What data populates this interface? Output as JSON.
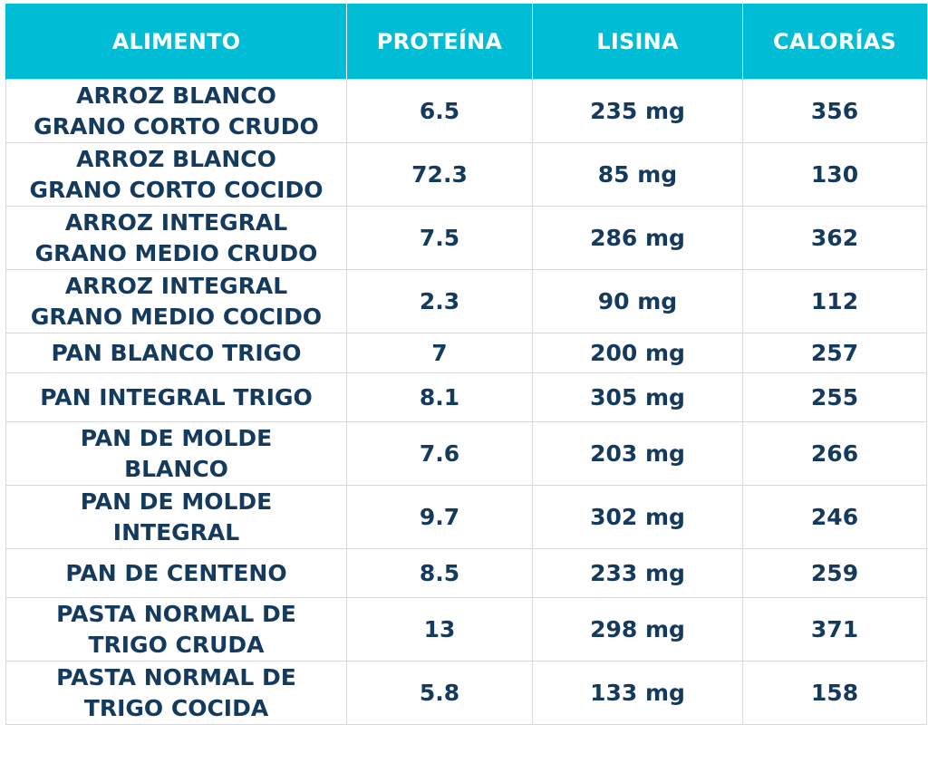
{
  "table": {
    "headers": [
      "ALIMENTO",
      "PROTEÍNA",
      "LISINA",
      "CALORÍAS"
    ],
    "rows": [
      {
        "alimento": "ARROZ BLANCO\nGRANO CORTO CRUDO",
        "proteina": "6.5",
        "lisina": "235 mg",
        "calorias": "356"
      },
      {
        "alimento": "ARROZ BLANCO\nGRANO CORTO COCIDO",
        "proteina": "72.3",
        "lisina": "85 mg",
        "calorias": "130"
      },
      {
        "alimento": "ARROZ INTEGRAL\nGRANO MEDIO CRUDO",
        "proteina": "7.5",
        "lisina": "286 mg",
        "calorias": "362"
      },
      {
        "alimento": "ARROZ INTEGRAL\nGRANO MEDIO COCIDO",
        "proteina": "2.3",
        "lisina": "90 mg",
        "calorias": "112"
      },
      {
        "alimento": "PAN BLANCO TRIGO",
        "proteina": "7",
        "lisina": "200 mg",
        "calorias": "257"
      },
      {
        "alimento": "PAN INTEGRAL TRIGO",
        "proteina": "8.1",
        "lisina": "305 mg",
        "calorias": "255"
      },
      {
        "alimento": "PAN DE  MOLDE\nBLANCO",
        "proteina": "7.6",
        "lisina": "203 mg",
        "calorias": "266"
      },
      {
        "alimento": "PAN DE MOLDE\nINTEGRAL",
        "proteina": "9.7",
        "lisina": "302 mg",
        "calorias": "246"
      },
      {
        "alimento": "PAN DE CENTENO",
        "proteina": "8.5",
        "lisina": "233 mg",
        "calorias": "259"
      },
      {
        "alimento": "PASTA NORMAL DE\nTRIGO CRUDA",
        "proteina": "13",
        "lisina": "298 mg",
        "calorias": "371"
      },
      {
        "alimento": "PASTA NORMAL DE\nTRIGO COCIDA",
        "proteina": "5.8",
        "lisina": "133 mg",
        "calorias": "158"
      }
    ]
  },
  "colors": {
    "header_bg": "#00bcd4",
    "header_text": "#ffffff",
    "cell_text": "#143a5e",
    "border": "#d4d9de"
  }
}
